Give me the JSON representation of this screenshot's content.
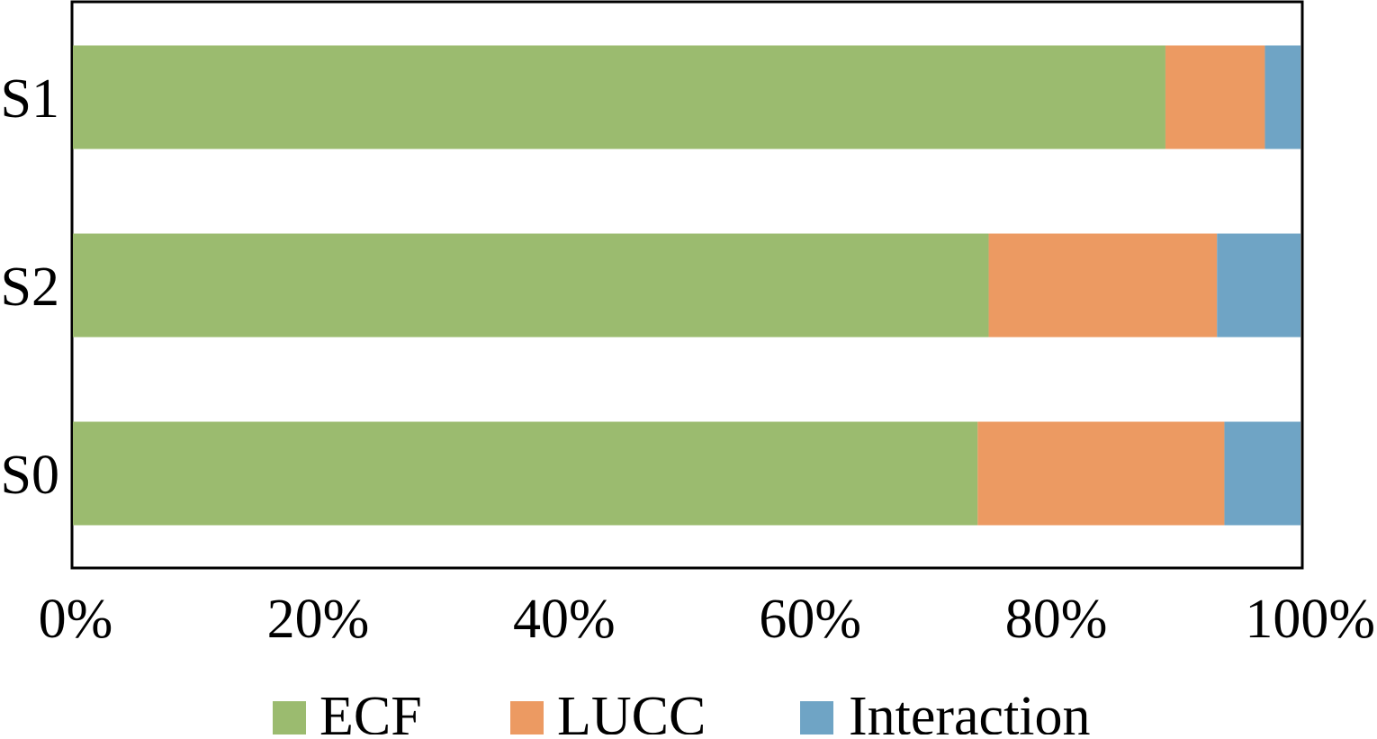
{
  "chart_data": {
    "type": "bar",
    "orientation": "horizontal",
    "stacked": "percent",
    "title": "",
    "xlabel": "",
    "ylabel": "",
    "categories": [
      "S1",
      "S2",
      "S0"
    ],
    "series": [
      {
        "name": "ECF",
        "values": [
          89,
          74.6,
          73.7
        ],
        "color": "#9BBB6F"
      },
      {
        "name": "LUCC",
        "values": [
          8.1,
          18.6,
          20.1
        ],
        "color": "#EC9A62"
      },
      {
        "name": "Interaction",
        "values": [
          2.9,
          6.8,
          6.2
        ],
        "color": "#6FA4C5"
      }
    ],
    "xlim": [
      0,
      100
    ],
    "x_ticks": [
      "0%",
      "20%",
      "40%",
      "60%",
      "80%",
      "100%"
    ],
    "grid": false,
    "legend": {
      "placement": "bottom"
    }
  }
}
